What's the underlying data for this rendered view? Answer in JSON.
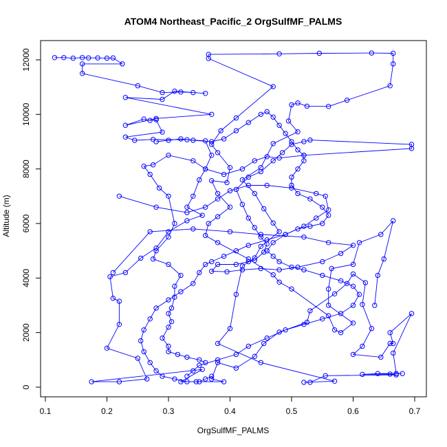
{
  "chart_data": {
    "type": "line",
    "title": "ATOM4 Northeast_Pacific_2 OrgSulfMF_PALMS",
    "xlabel": "OrgSulfMF_PALMS",
    "ylabel": "Altitude (m)",
    "xlim": [
      0.1,
      0.7
    ],
    "ylim": [
      0,
      12000
    ],
    "x_ticks": [
      "0.1",
      "0.2",
      "0.3",
      "0.4",
      "0.5",
      "0.6",
      "0.7"
    ],
    "y_ticks": [
      "0",
      "2000",
      "4000",
      "6000",
      "8000",
      "10000",
      "12000"
    ],
    "grid": false,
    "series_color": "#0000ff",
    "marker": "open-circle",
    "series": [
      {
        "points": [
          [
            0.115,
            12080
          ],
          [
            0.13,
            12080
          ],
          [
            0.145,
            12060
          ],
          [
            0.16,
            12080
          ],
          [
            0.17,
            12070
          ],
          [
            0.185,
            12070
          ],
          [
            0.2,
            12060
          ],
          [
            0.21,
            12070
          ],
          [
            0.225,
            11850
          ],
          [
            0.16,
            11850
          ],
          [
            0.16,
            11500
          ],
          [
            0.25,
            11050
          ],
          [
            0.29,
            10800
          ],
          [
            0.32,
            10820
          ],
          [
            0.34,
            10800
          ],
          [
            0.36,
            10770
          ],
          [
            0.31,
            10850
          ],
          [
            0.29,
            10550
          ],
          [
            0.23,
            10620
          ],
          [
            0.37,
            10000
          ],
          [
            0.28,
            9850
          ],
          [
            0.23,
            9600
          ],
          [
            0.26,
            9830
          ],
          [
            0.27,
            9780
          ],
          [
            0.28,
            9800
          ],
          [
            0.29,
            9350
          ],
          [
            0.23,
            9170
          ],
          [
            0.245,
            9050
          ],
          [
            0.275,
            9080
          ],
          [
            0.33,
            9070
          ],
          [
            0.36,
            9030
          ],
          [
            0.37,
            8500
          ],
          [
            0.36,
            8000
          ],
          [
            0.35,
            7600
          ],
          [
            0.34,
            7000
          ],
          [
            0.33,
            6600
          ],
          [
            0.355,
            6300
          ],
          [
            0.33,
            6100
          ],
          [
            0.3,
            5700
          ],
          [
            0.28,
            5100
          ],
          [
            0.255,
            4730
          ],
          [
            0.23,
            4200
          ],
          [
            0.205,
            4050
          ],
          [
            0.21,
            3260
          ],
          [
            0.22,
            3150
          ],
          [
            0.22,
            2300
          ],
          [
            0.2,
            1430
          ],
          [
            0.25,
            1060
          ],
          [
            0.265,
            300
          ],
          [
            0.22,
            200
          ],
          [
            0.175,
            200
          ],
          [
            0.355,
            650
          ],
          [
            0.32,
            200
          ],
          [
            0.345,
            200
          ],
          [
            0.39,
            200
          ],
          [
            0.37,
            300
          ],
          [
            0.38,
            900
          ],
          [
            0.41,
            700
          ],
          [
            0.44,
            1130
          ],
          [
            0.455,
            1600
          ],
          [
            0.48,
            2020
          ],
          [
            0.525,
            2380
          ],
          [
            0.53,
            2800
          ],
          [
            0.57,
            3420
          ],
          [
            0.59,
            3800
          ],
          [
            0.6,
            4150
          ],
          [
            0.62,
            3830
          ],
          [
            0.615,
            3030
          ],
          [
            0.63,
            2150
          ],
          [
            0.615,
            1500
          ],
          [
            0.6,
            1200
          ],
          [
            0.645,
            1100
          ],
          [
            0.66,
            1600
          ],
          [
            0.665,
            1600
          ],
          [
            0.66,
            2000
          ],
          [
            0.695,
            2700
          ],
          [
            0.665,
            1250
          ],
          [
            0.67,
            500
          ],
          [
            0.68,
            500
          ],
          [
            0.64,
            500
          ],
          [
            0.615,
            470
          ],
          [
            0.66,
            480
          ],
          [
            0.67,
            450
          ],
          [
            0.555,
            420
          ],
          [
            0.53,
            180
          ],
          [
            0.52,
            180
          ],
          [
            0.57,
            220
          ],
          [
            0.45,
            900
          ],
          [
            0.38,
            1600
          ],
          [
            0.4,
            2150
          ],
          [
            0.41,
            3400
          ],
          [
            0.42,
            4440
          ],
          [
            0.44,
            4740
          ],
          [
            0.45,
            5160
          ],
          [
            0.48,
            5700
          ],
          [
            0.47,
            6020
          ],
          [
            0.455,
            6540
          ],
          [
            0.44,
            7100
          ],
          [
            0.42,
            7600
          ],
          [
            0.45,
            8050
          ],
          [
            0.47,
            8930
          ],
          [
            0.51,
            9360
          ],
          [
            0.495,
            9760
          ],
          [
            0.5,
            10350
          ],
          [
            0.51,
            10420
          ],
          [
            0.525,
            10300
          ],
          [
            0.56,
            10290
          ],
          [
            0.59,
            10520
          ],
          [
            0.66,
            11050
          ],
          [
            0.665,
            11850
          ],
          [
            0.665,
            12240
          ],
          [
            0.63,
            12250
          ],
          [
            0.545,
            12240
          ],
          [
            0.48,
            12220
          ],
          [
            0.365,
            12200
          ],
          [
            0.365,
            12050
          ],
          [
            0.47,
            11020
          ],
          [
            0.41,
            9870
          ],
          [
            0.385,
            9400
          ],
          [
            0.37,
            8900
          ],
          [
            0.38,
            8600
          ],
          [
            0.4,
            8050
          ],
          [
            0.395,
            7500
          ],
          [
            0.37,
            7570
          ],
          [
            0.38,
            7100
          ],
          [
            0.4,
            6600
          ],
          [
            0.38,
            6250
          ],
          [
            0.365,
            6000
          ],
          [
            0.36,
            5560
          ],
          [
            0.38,
            5300
          ],
          [
            0.43,
            4700
          ],
          [
            0.47,
            4120
          ],
          [
            0.48,
            3850
          ],
          [
            0.5,
            3600
          ],
          [
            0.56,
            2620
          ],
          [
            0.57,
            2100
          ],
          [
            0.58,
            2000
          ],
          [
            0.6,
            2350
          ],
          [
            0.56,
            3000
          ],
          [
            0.56,
            3600
          ],
          [
            0.565,
            4350
          ],
          [
            0.6,
            4500
          ],
          [
            0.61,
            5300
          ],
          [
            0.645,
            5600
          ],
          [
            0.665,
            6100
          ],
          [
            0.65,
            4700
          ],
          [
            0.64,
            4100
          ],
          [
            0.635,
            3000
          ]
        ]
      },
      {
        "points": [
          [
            0.21,
            4200
          ],
          [
            0.27,
            5700
          ],
          [
            0.34,
            5800
          ],
          [
            0.4,
            5700
          ],
          [
            0.45,
            5600
          ],
          [
            0.52,
            5500
          ],
          [
            0.56,
            5300
          ],
          [
            0.6,
            5200
          ],
          [
            0.58,
            4900
          ],
          [
            0.55,
            4600
          ],
          [
            0.51,
            4400
          ],
          [
            0.48,
            4300
          ],
          [
            0.45,
            4350
          ],
          [
            0.42,
            4300
          ],
          [
            0.395,
            4230
          ],
          [
            0.37,
            4250
          ],
          [
            0.38,
            4500
          ],
          [
            0.41,
            4500
          ],
          [
            0.43,
            4600
          ],
          [
            0.44,
            4650
          ],
          [
            0.455,
            4950
          ],
          [
            0.46,
            5250
          ],
          [
            0.45,
            5500
          ],
          [
            0.44,
            5850
          ],
          [
            0.43,
            6200
          ],
          [
            0.42,
            6700
          ],
          [
            0.41,
            7250
          ],
          [
            0.43,
            7700
          ],
          [
            0.45,
            7900
          ],
          [
            0.47,
            8300
          ],
          [
            0.485,
            8600
          ],
          [
            0.5,
            8900
          ],
          [
            0.52,
            9000
          ],
          [
            0.53,
            9060
          ],
          [
            0.695,
            8900
          ],
          [
            0.695,
            8750
          ],
          [
            0.52,
            8500
          ],
          [
            0.48,
            8400
          ],
          [
            0.46,
            8450
          ],
          [
            0.44,
            8300
          ],
          [
            0.42,
            8000
          ],
          [
            0.39,
            7800
          ],
          [
            0.36,
            8000
          ],
          [
            0.34,
            8300
          ],
          [
            0.3,
            8500
          ],
          [
            0.275,
            8150
          ],
          [
            0.26,
            8100
          ],
          [
            0.27,
            7800
          ],
          [
            0.285,
            7300
          ],
          [
            0.3,
            7000
          ],
          [
            0.31,
            6000
          ],
          [
            0.3,
            5500
          ],
          [
            0.28,
            5000
          ],
          [
            0.275,
            4700
          ],
          [
            0.3,
            4500
          ],
          [
            0.32,
            4100
          ],
          [
            0.31,
            3700
          ],
          [
            0.31,
            3300
          ],
          [
            0.305,
            2900
          ],
          [
            0.3,
            2700
          ],
          [
            0.305,
            2400
          ],
          [
            0.3,
            2200
          ],
          [
            0.29,
            1800
          ],
          [
            0.3,
            1500
          ],
          [
            0.3,
            1300
          ],
          [
            0.315,
            1200
          ],
          [
            0.33,
            1100
          ],
          [
            0.35,
            1000
          ],
          [
            0.36,
            900
          ]
        ]
      },
      {
        "points": [
          [
            0.33,
            400
          ],
          [
            0.34,
            600
          ],
          [
            0.35,
            800
          ],
          [
            0.38,
            1000
          ],
          [
            0.41,
            1200
          ],
          [
            0.43,
            1500
          ],
          [
            0.46,
            1800
          ],
          [
            0.49,
            2100
          ],
          [
            0.52,
            2300
          ],
          [
            0.55,
            2500
          ],
          [
            0.58,
            2700
          ],
          [
            0.6,
            3000
          ],
          [
            0.61,
            3400
          ],
          [
            0.6,
            3700
          ],
          [
            0.58,
            3900
          ],
          [
            0.55,
            4100
          ],
          [
            0.52,
            4300
          ],
          [
            0.5,
            4400
          ],
          [
            0.48,
            4600
          ],
          [
            0.47,
            4800
          ],
          [
            0.46,
            5000
          ],
          [
            0.47,
            5300
          ],
          [
            0.49,
            5600
          ],
          [
            0.51,
            5800
          ],
          [
            0.53,
            5900
          ],
          [
            0.55,
            6000
          ],
          [
            0.56,
            6300
          ],
          [
            0.55,
            6600
          ],
          [
            0.53,
            6900
          ],
          [
            0.51,
            7100
          ],
          [
            0.5,
            7400
          ],
          [
            0.5,
            7700
          ],
          [
            0.51,
            8000
          ],
          [
            0.52,
            8300
          ],
          [
            0.52,
            8500
          ],
          [
            0.51,
            8700
          ],
          [
            0.5,
            9000
          ],
          [
            0.49,
            9300
          ],
          [
            0.48,
            9600
          ],
          [
            0.47,
            9900
          ],
          [
            0.46,
            10100
          ],
          [
            0.45,
            10000
          ],
          [
            0.43,
            9700
          ],
          [
            0.41,
            9400
          ],
          [
            0.39,
            9100
          ],
          [
            0.37,
            9000
          ],
          [
            0.34,
            9050
          ],
          [
            0.32,
            9100
          ],
          [
            0.3,
            9050
          ],
          [
            0.28,
            9000
          ]
        ]
      },
      {
        "points": [
          [
            0.22,
            7000
          ],
          [
            0.28,
            6600
          ],
          [
            0.33,
            6400
          ],
          [
            0.36,
            6600
          ],
          [
            0.38,
            6900
          ],
          [
            0.4,
            7200
          ],
          [
            0.43,
            7400
          ],
          [
            0.46,
            7400
          ],
          [
            0.5,
            7300
          ],
          [
            0.54,
            7100
          ],
          [
            0.555,
            7000
          ],
          [
            0.56,
            6500
          ],
          [
            0.54,
            6200
          ],
          [
            0.52,
            5900
          ],
          [
            0.49,
            5600
          ],
          [
            0.46,
            5400
          ],
          [
            0.43,
            5200
          ],
          [
            0.41,
            5000
          ],
          [
            0.39,
            4800
          ],
          [
            0.37,
            4600
          ],
          [
            0.36,
            4500
          ],
          [
            0.35,
            4200
          ],
          [
            0.34,
            3800
          ],
          [
            0.32,
            3500
          ],
          [
            0.3,
            3200
          ],
          [
            0.28,
            2900
          ],
          [
            0.27,
            2500
          ],
          [
            0.26,
            2100
          ],
          [
            0.255,
            1700
          ],
          [
            0.26,
            1300
          ],
          [
            0.27,
            900
          ],
          [
            0.28,
            600
          ],
          [
            0.29,
            400
          ],
          [
            0.31,
            300
          ],
          [
            0.33,
            200
          ],
          [
            0.35,
            200
          ],
          [
            0.36,
            300
          ],
          [
            0.37,
            400
          ]
        ]
      }
    ]
  }
}
